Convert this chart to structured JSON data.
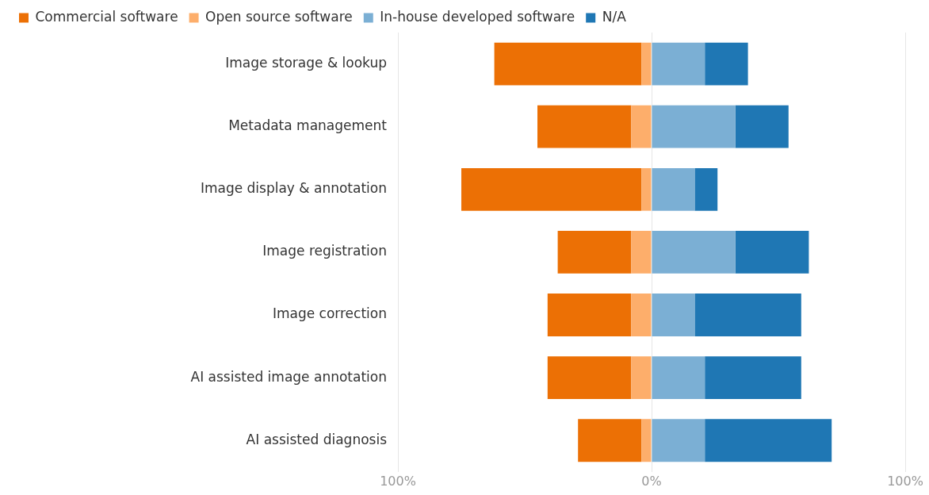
{
  "chart_data": {
    "type": "bar",
    "orientation": "horizontal",
    "stacked": true,
    "categories": [
      "Image storage & lookup",
      "Metadata management",
      "Image display & annotation",
      "Image registration",
      "Image correction",
      "AI assisted image annotation",
      "AI assisted diagnosis"
    ],
    "series": [
      {
        "name": "Open source software",
        "color": "#fdae6b",
        "values": [
          -4,
          -8,
          -4,
          -8,
          -8,
          -8,
          -4
        ]
      },
      {
        "name": "Commercial software",
        "color": "#ec7005",
        "values": [
          -58,
          -37,
          -71,
          -29,
          -33,
          -33,
          -25
        ]
      },
      {
        "name": "In-house developed software",
        "color": "#7bafd4",
        "values": [
          21,
          33,
          17,
          33,
          17,
          21,
          21
        ]
      },
      {
        "name": "N/A",
        "color": "#1f77b4",
        "values": [
          17,
          21,
          9,
          29,
          42,
          38,
          50
        ]
      }
    ],
    "xlim": [
      -100,
      100
    ],
    "xticks": [
      {
        "value": -100,
        "label": "100%"
      },
      {
        "value": 0,
        "label": "0%"
      },
      {
        "value": 100,
        "label": "100%"
      }
    ],
    "grid": "x",
    "legend": "top left"
  }
}
